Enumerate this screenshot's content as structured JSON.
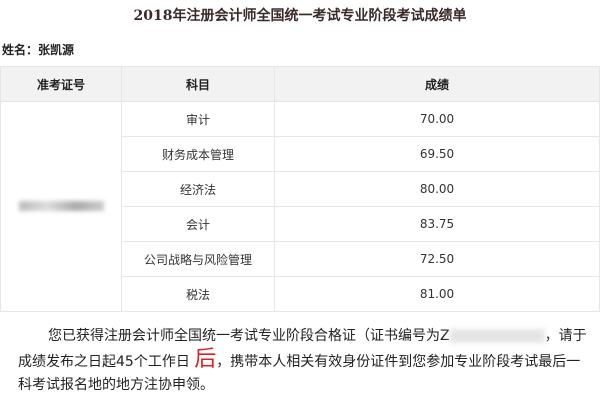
{
  "title": "2018年注册会计师全国统一考试专业阶段考试成绩单",
  "name_label": "姓名：张凯源",
  "table": {
    "headers": [
      "准考证号",
      "科目",
      "成绩"
    ],
    "rows": [
      {
        "subject": "审计",
        "score": "70.00"
      },
      {
        "subject": "财务成本管理",
        "score": "69.50"
      },
      {
        "subject": "经济法",
        "score": "80.00"
      },
      {
        "subject": "会计",
        "score": "83.75"
      },
      {
        "subject": "公司战略与风险管理",
        "score": "72.50"
      },
      {
        "subject": "税法",
        "score": "81.00"
      }
    ]
  },
  "notice": {
    "part1": "您已获得注册会计师全国统一考试专业阶段合格证（证书编号为Z",
    "part2": "，请于成绩发布之日起45个工作日",
    "highlight": "后",
    "part3": "，携带本人相关有效身份证件到您参加专业阶段考试最后一科考试报名地的地方注协申领。",
    "highlight_color": "#e02020"
  }
}
